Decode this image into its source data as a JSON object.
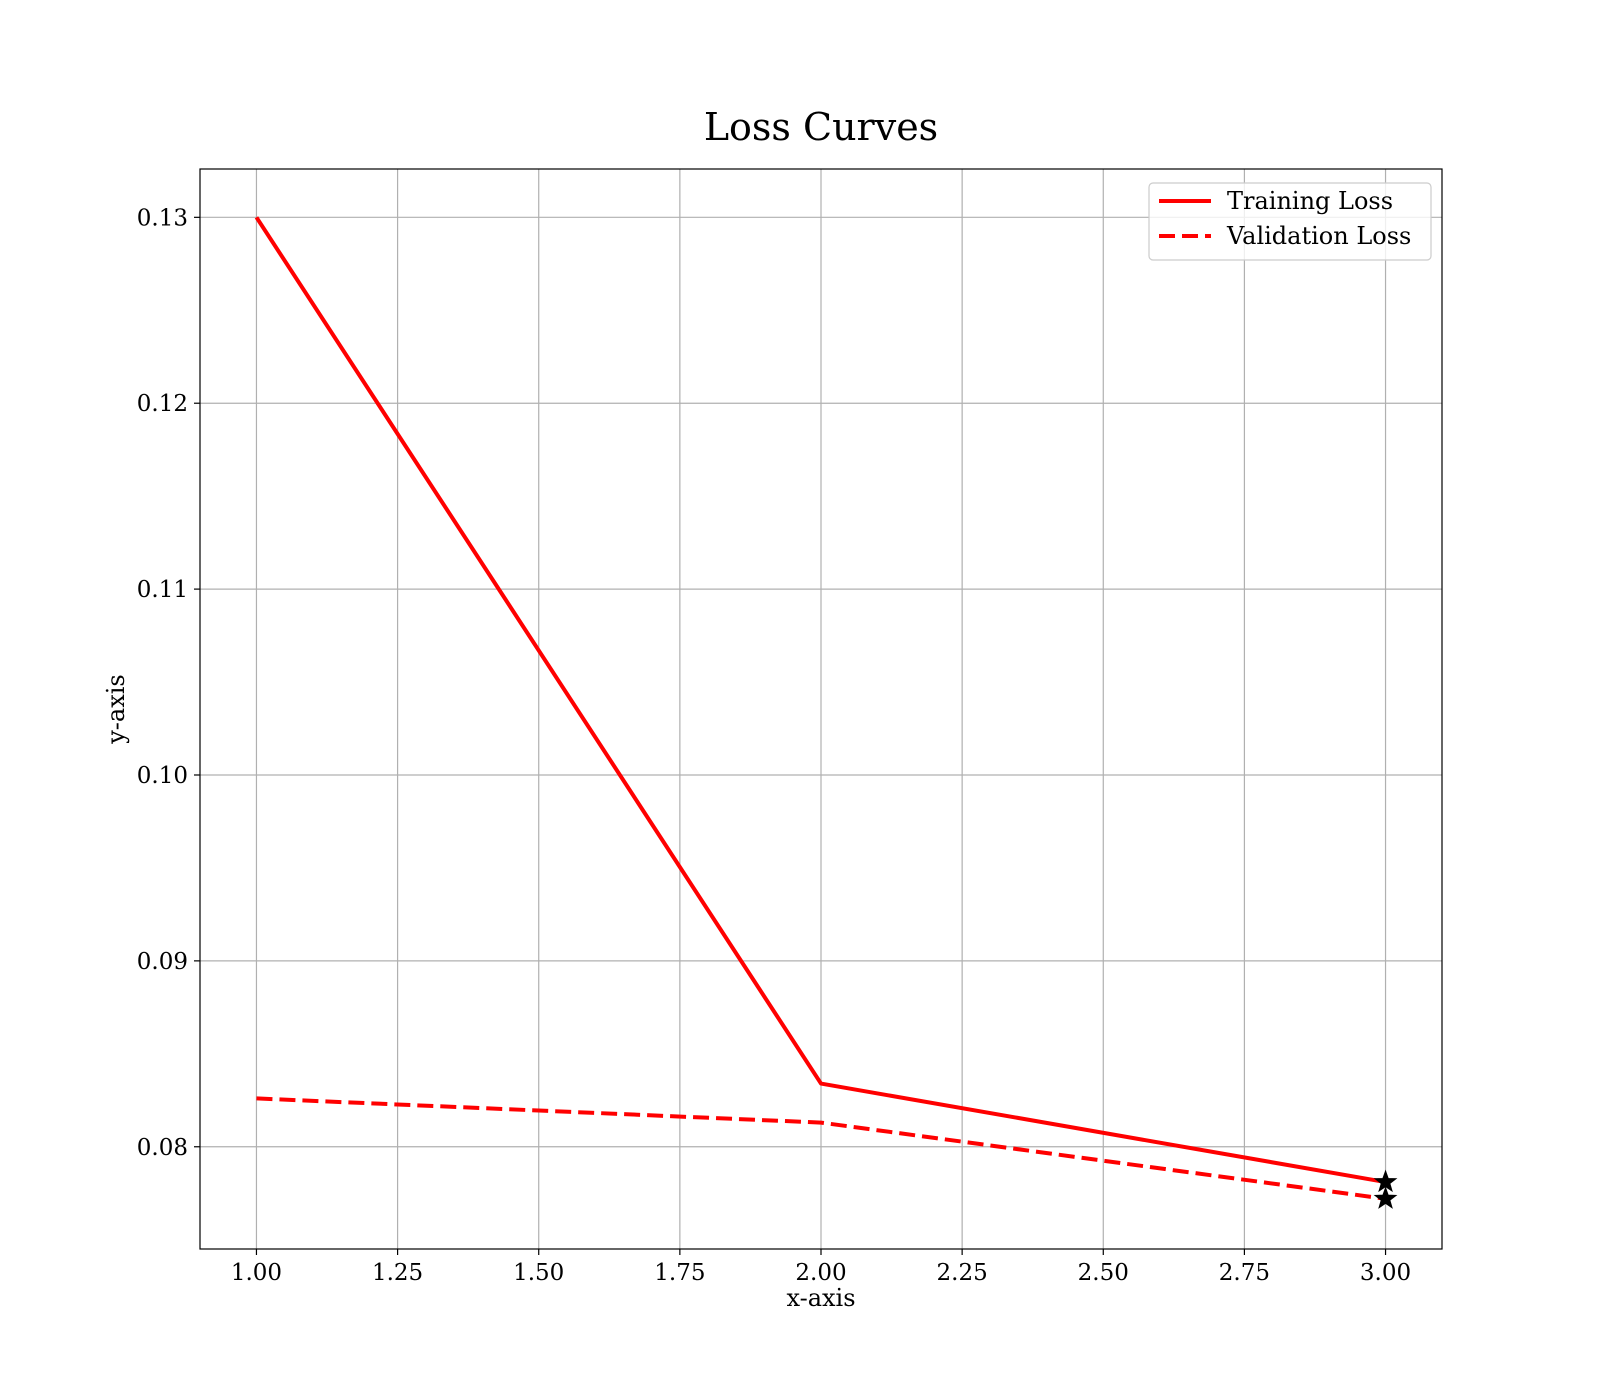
{
  "chart_data": {
    "type": "line",
    "title": "Loss Curves",
    "xlabel": "x-axis",
    "ylabel": "y-axis",
    "xlim": [
      0.9,
      3.1
    ],
    "ylim": [
      0.0745,
      0.1326
    ],
    "x_ticks": [
      1.0,
      1.25,
      1.5,
      1.75,
      2.0,
      2.25,
      2.5,
      2.75,
      3.0
    ],
    "x_tick_labels": [
      "1.00",
      "1.25",
      "1.50",
      "1.75",
      "2.00",
      "2.25",
      "2.50",
      "2.75",
      "3.00"
    ],
    "y_ticks": [
      0.08,
      0.09,
      0.1,
      0.11,
      0.12,
      0.13
    ],
    "y_tick_labels": [
      "0.08",
      "0.09",
      "0.10",
      "0.11",
      "0.12",
      "0.13"
    ],
    "grid": true,
    "legend": {
      "position": "top-right"
    },
    "x": [
      1,
      2,
      3
    ],
    "series": [
      {
        "name": "Training Loss",
        "values": [
          0.13,
          0.0834,
          0.0781
        ],
        "color": "#ff0000",
        "style": "solid",
        "end_marker": "star"
      },
      {
        "name": "Validation Loss",
        "values": [
          0.0826,
          0.0813,
          0.0772
        ],
        "color": "#ff0000",
        "style": "dashed",
        "end_marker": "star"
      }
    ]
  }
}
